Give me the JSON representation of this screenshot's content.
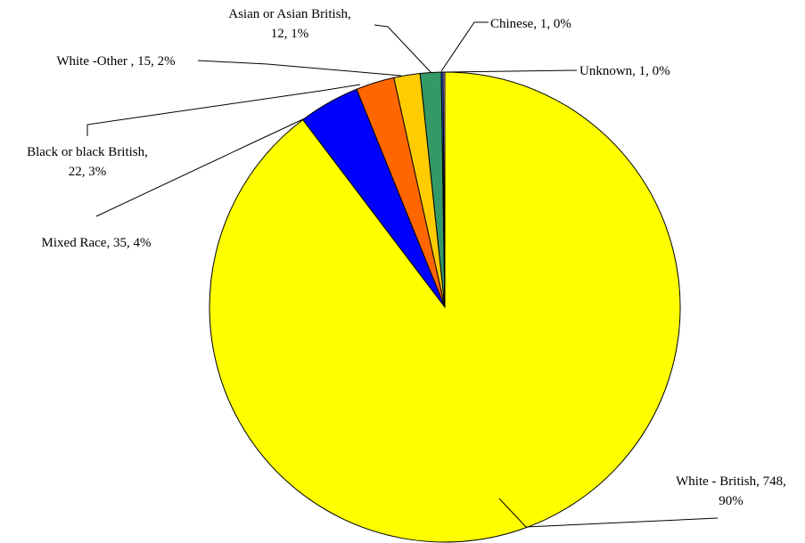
{
  "chart_data": {
    "type": "pie",
    "title": "",
    "start_angle_deg": 0,
    "direction": "clockwise",
    "slices": [
      {
        "label": "White - British",
        "value": 748,
        "pct": "90%",
        "color": "#FFFF00",
        "text": [
          "White - British, 748,",
          "90%"
        ]
      },
      {
        "label": "Mixed Race",
        "value": 35,
        "pct": "4%",
        "color": "#0000FF",
        "text": [
          "Mixed Race, 35, 4%"
        ]
      },
      {
        "label": "Black or black British",
        "value": 22,
        "pct": "3%",
        "color": "#FF6600",
        "text": [
          "Black or black British,",
          "22, 3%"
        ]
      },
      {
        "label": "White -Other",
        "value": 15,
        "pct": "2%",
        "color": "#FFCC00",
        "text": [
          "White -Other , 15, 2%"
        ]
      },
      {
        "label": "Asian or Asian British",
        "value": 12,
        "pct": "1%",
        "color": "#339966",
        "text": [
          "Asian or Asian British,",
          "12, 1%"
        ]
      },
      {
        "label": "Chinese",
        "value": 1,
        "pct": "0%",
        "color": "#3366FF",
        "text": [
          "Chinese, 1, 0%"
        ]
      },
      {
        "label": "Unknown",
        "value": 1,
        "pct": "0%",
        "color": "#CC99FF",
        "text": [
          "Unknown, 1, 0%"
        ]
      }
    ]
  }
}
